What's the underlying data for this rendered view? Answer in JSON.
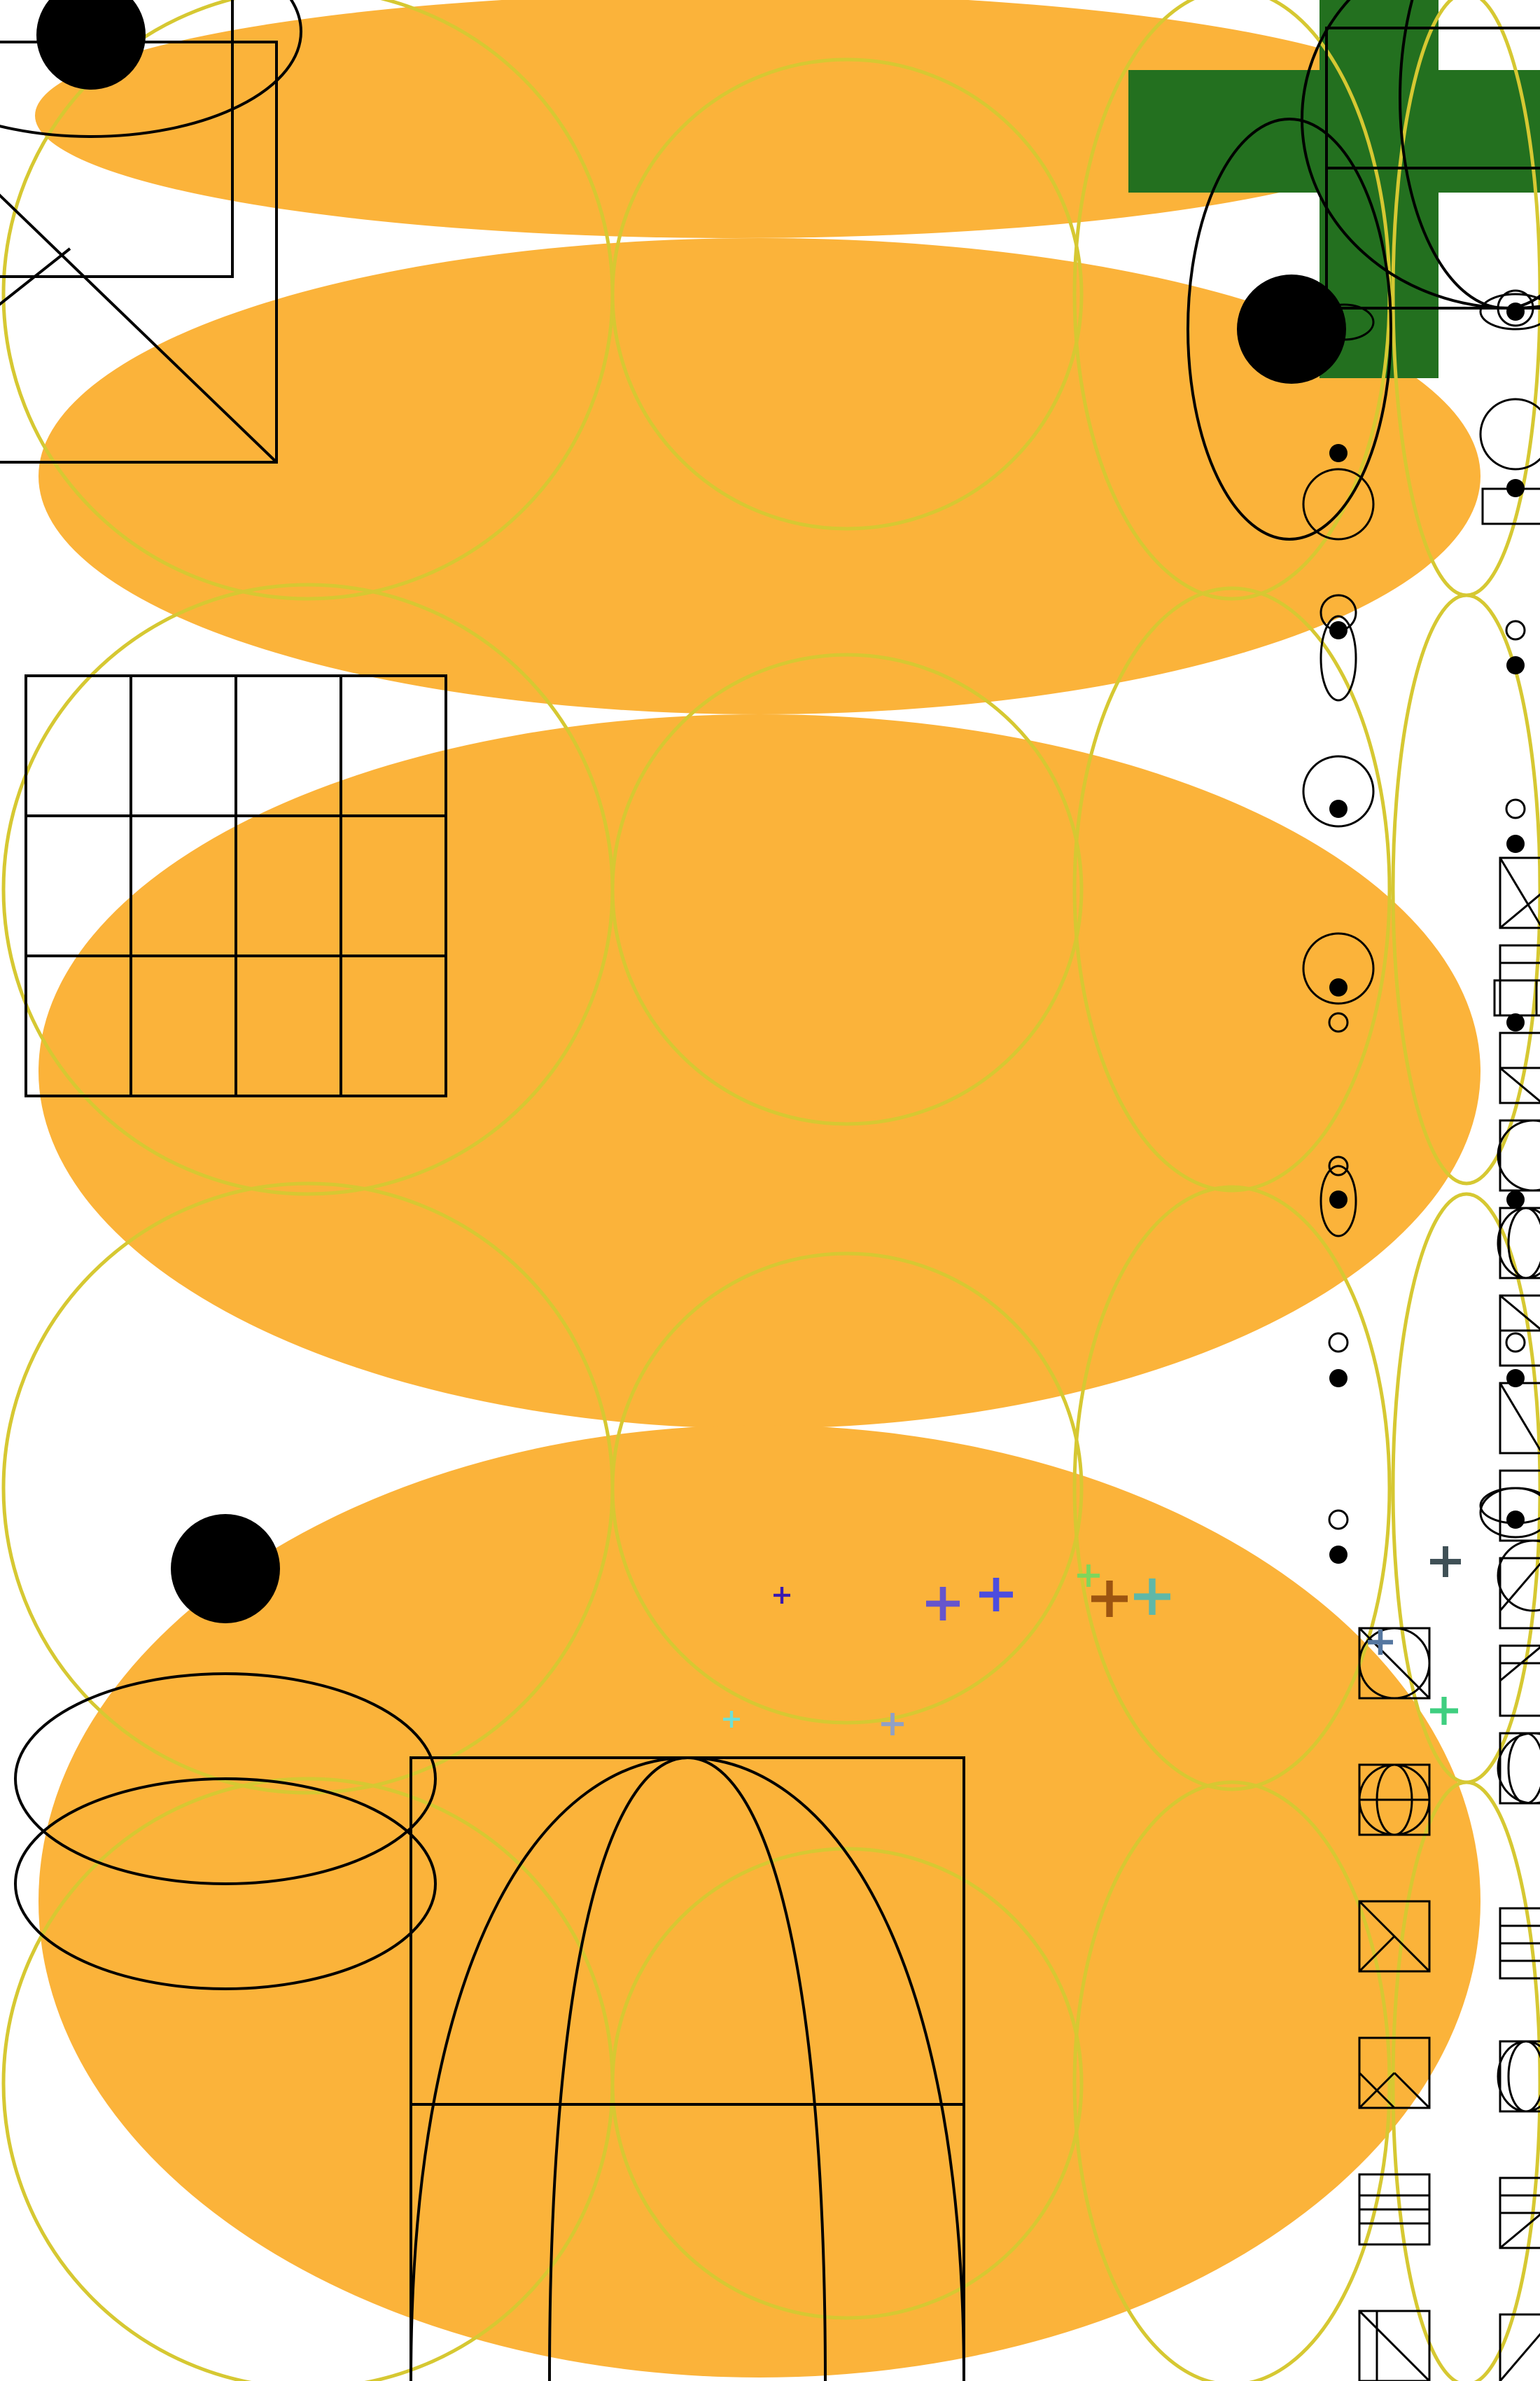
{
  "palette": {
    "background": "#ffffff",
    "blob_fill": "#fbb33a",
    "ring_stroke": "#d6c832",
    "cross_fill": "#23701f",
    "ink": "#000000"
  },
  "scatter_crosses": [
    {
      "name": "cross-purple-small",
      "color": "#3a1ab0"
    },
    {
      "name": "cross-indigo-a",
      "color": "#6655cc"
    },
    {
      "name": "cross-blue",
      "color": "#4d4dde"
    },
    {
      "name": "cross-lime",
      "color": "#7dd65c"
    },
    {
      "name": "cross-brown",
      "color": "#9c5410"
    },
    {
      "name": "cross-teal",
      "color": "#5fb8a8"
    },
    {
      "name": "cross-aqua",
      "color": "#6ee0d6"
    },
    {
      "name": "cross-grey-blue",
      "color": "#8fa0c6"
    },
    {
      "name": "cross-slate",
      "color": "#3f5056"
    },
    {
      "name": "cross-steel",
      "color": "#5577a0"
    },
    {
      "name": "cross-green",
      "color": "#3fcf80"
    }
  ]
}
